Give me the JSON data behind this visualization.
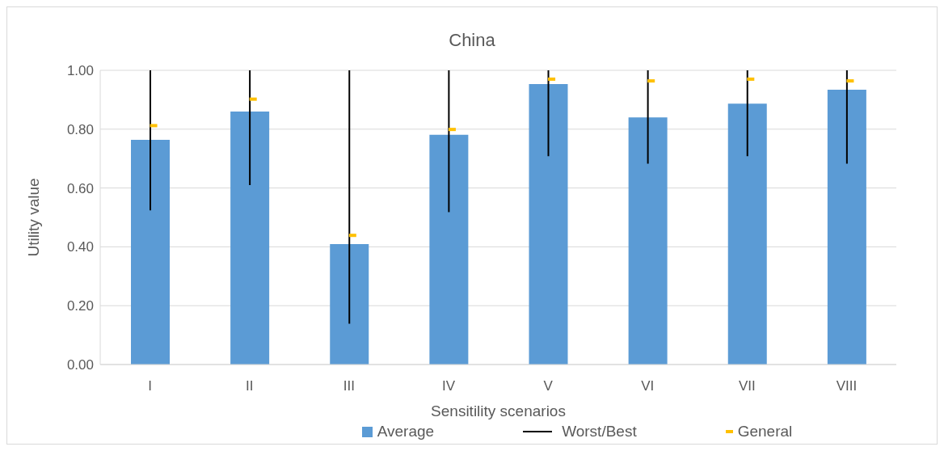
{
  "chart_data": {
    "type": "bar",
    "title": "China",
    "xlabel": "Sensitility scenarios",
    "ylabel": "Utility value",
    "categories": [
      "I",
      "II",
      "III",
      "IV",
      "V",
      "VI",
      "VII",
      "VIII"
    ],
    "series": [
      {
        "name": "Average",
        "color": "#5b9bd5",
        "values": [
          0.764,
          0.86,
          0.409,
          0.781,
          0.953,
          0.84,
          0.887,
          0.934
        ]
      },
      {
        "name": "Worst/Best",
        "type": "bar",
        "color": "#000000",
        "base": [
          0.524,
          0.61,
          0.139,
          0.518,
          0.708,
          0.683,
          0.708,
          0.683
        ],
        "values": [
          0.476,
          0.39,
          0.861,
          0.482,
          0.292,
          0.317,
          0.292,
          0.317
        ]
      },
      {
        "name": "General",
        "type": "scatter",
        "color": "#ffc000",
        "values": [
          0.812,
          0.902,
          0.439,
          0.799,
          0.97,
          0.964,
          0.97,
          0.964
        ]
      }
    ],
    "ylim": [
      0,
      1
    ],
    "yticks": [
      {
        "value": 0,
        "label": "0.00"
      },
      {
        "value": 0.2,
        "label": "0.20"
      },
      {
        "value": 0.4,
        "label": "0.40"
      },
      {
        "value": 0.6,
        "label": "0.60"
      },
      {
        "value": 0.8,
        "label": "0.80"
      },
      {
        "value": 1,
        "label": "1.00"
      }
    ],
    "grid": "y",
    "legend": "bottom"
  }
}
